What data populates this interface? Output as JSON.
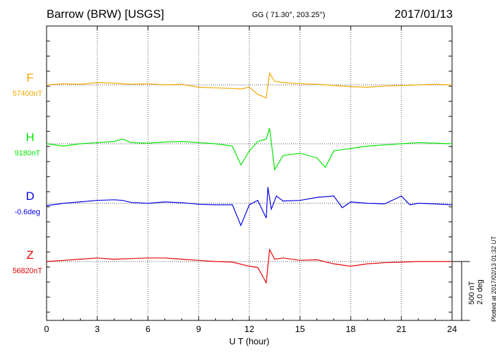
{
  "header": {
    "station": "Barrow (BRW)  [USGS]",
    "coords": "GG ( 71.30°, 203.25°)",
    "date": "2017/01/13"
  },
  "plotted_at": "Plotted at 2017/02/13 01:32 UT",
  "scale": {
    "nt": "500 nT",
    "deg": "2.0 deg"
  },
  "chart_data": {
    "type": "line",
    "xlabel": "U T (hour)",
    "xlim": [
      0,
      24
    ],
    "xticks": [
      "0",
      "3",
      "6",
      "9",
      "12",
      "15",
      "18",
      "21",
      "24"
    ],
    "grid": true,
    "series": [
      {
        "name": "F",
        "baseline": "57400nT",
        "color": "#f5a800",
        "x": [
          0,
          1,
          2,
          3,
          4,
          5,
          6,
          7,
          8,
          9,
          10,
          11,
          11.5,
          12,
          12.5,
          13,
          13.2,
          13.5,
          14,
          15,
          16,
          17,
          18,
          19,
          20,
          21,
          22,
          23,
          24
        ],
        "y": [
          0,
          10,
          5,
          20,
          15,
          5,
          10,
          0,
          5,
          -20,
          -25,
          -30,
          -35,
          -20,
          -80,
          -110,
          100,
          30,
          20,
          10,
          5,
          -5,
          -15,
          -20,
          -10,
          -5,
          0,
          5,
          0
        ]
      },
      {
        "name": "H",
        "baseline": "9180nT",
        "color": "#00e600",
        "x": [
          0,
          1,
          2,
          3,
          4,
          4.5,
          5,
          6,
          7,
          8,
          9,
          10,
          11,
          11.5,
          12,
          12.5,
          13,
          13.2,
          13.5,
          14,
          15,
          16,
          16.5,
          17,
          18,
          19,
          20,
          21,
          22,
          23,
          24
        ],
        "y": [
          0,
          -20,
          0,
          10,
          20,
          40,
          10,
          5,
          15,
          20,
          10,
          0,
          -20,
          -180,
          -60,
          20,
          40,
          130,
          -220,
          -100,
          -80,
          -120,
          -200,
          -60,
          -40,
          -20,
          -10,
          0,
          10,
          5,
          0
        ]
      },
      {
        "name": "D",
        "baseline": "-0.6deg",
        "color": "#0000e6",
        "x": [
          0,
          1,
          2,
          3,
          4,
          4.5,
          5,
          6,
          7,
          8,
          9,
          10,
          11,
          11.5,
          12,
          12.5,
          13,
          13.1,
          13.3,
          13.6,
          14,
          15,
          16,
          17,
          17.5,
          18,
          19,
          20,
          21,
          21.5,
          22,
          23,
          24
        ],
        "y": [
          -0.08,
          0.0,
          0.05,
          0.1,
          0.12,
          0.1,
          0.03,
          0.0,
          0.05,
          0.02,
          -0.03,
          -0.05,
          -0.05,
          -0.75,
          -0.05,
          0.1,
          -0.5,
          0.55,
          -0.2,
          0.25,
          0.08,
          0.1,
          0.2,
          0.25,
          -0.15,
          0.05,
          0.0,
          -0.02,
          0.25,
          -0.05,
          0.0,
          -0.02,
          -0.05
        ]
      },
      {
        "name": "Z",
        "baseline": "56820nT",
        "color": "#e60000",
        "x": [
          0,
          1,
          2,
          3,
          4,
          5,
          6,
          7,
          8,
          9,
          10,
          11,
          12,
          12.5,
          13,
          13.2,
          13.5,
          14,
          15,
          16,
          17,
          18,
          19,
          20,
          21,
          22,
          23,
          24
        ],
        "y": [
          0,
          10,
          20,
          30,
          20,
          25,
          30,
          30,
          20,
          10,
          0,
          -5,
          -40,
          -50,
          -180,
          100,
          20,
          30,
          10,
          15,
          -20,
          -40,
          -20,
          -10,
          -5,
          0,
          0,
          0
        ]
      }
    ]
  }
}
